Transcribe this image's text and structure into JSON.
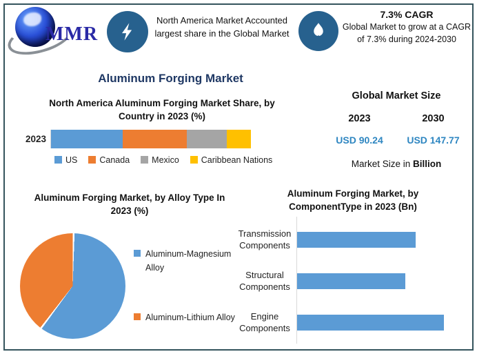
{
  "page": {
    "background": "#FFFFFF",
    "border_color": "#33535C",
    "accent_blue": "#5B9BD5",
    "badge_blue": "#27618E"
  },
  "header": {
    "logo_text": "MMR",
    "fact1": {
      "icon": "lightning-icon",
      "text": "North America Market Accounted largest share in the Global Market"
    },
    "fact2": {
      "icon": "flame-icon",
      "title": "7.3% CAGR",
      "text": "Global Market to grow at a CAGR of 7.3% during 2024-2030"
    }
  },
  "main_title": "Aluminum Forging Market",
  "market_size_panel": {
    "title": "Global Market Size",
    "years": [
      "2023",
      "2030"
    ],
    "values": [
      "USD 90.24",
      "USD 147.77"
    ],
    "note_regular": "Market Size in ",
    "note_bold": "Billion",
    "value_color": "#2E86C1"
  },
  "chart_data": [
    {
      "type": "bar",
      "subtype": "stacked-horizontal",
      "title": "North America Aluminum Forging Market Share, by Country in 2023 (%)",
      "categories": [
        "2023"
      ],
      "series": [
        {
          "name": "US",
          "values": [
            36
          ],
          "color": "#5B9BD5"
        },
        {
          "name": "Canada",
          "values": [
            32
          ],
          "color": "#ED7D31"
        },
        {
          "name": "Mexico",
          "values": [
            20
          ],
          "color": "#A5A5A5"
        },
        {
          "name": "Caribbean Nations",
          "values": [
            12
          ],
          "color": "#FFC000"
        }
      ],
      "xlim": [
        0,
        100
      ],
      "legend_position": "bottom",
      "grid": false
    },
    {
      "type": "pie",
      "title": "Aluminum Forging Market, by Alloy Type In 2023 (%)",
      "labels": [
        "Aluminum-Magnesium Alloy",
        "Aluminum-Lithium Alloy"
      ],
      "values": [
        60,
        40
      ],
      "colors": [
        "#5B9BD5",
        "#ED7D31"
      ],
      "start_angle_deg": 0,
      "legend_position": "right"
    },
    {
      "type": "bar",
      "subtype": "horizontal",
      "title": "Aluminum Forging Market, by ComponentType in 2023 (Bn)",
      "categories": [
        "Transmission Components",
        "Structural Components",
        "Engine Components"
      ],
      "values": [
        0.81,
        0.74,
        1.0
      ],
      "xlim": [
        0,
        1.2
      ],
      "color": "#5B9BD5",
      "grid": false,
      "legend_position": "none"
    }
  ]
}
